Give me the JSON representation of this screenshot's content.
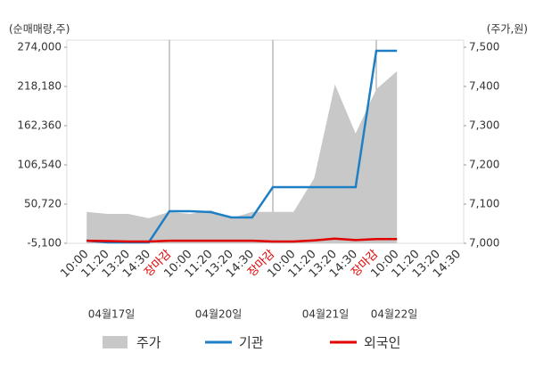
{
  "chart_data": {
    "type": "line",
    "y_label": "(순매매량,주)",
    "y2_label": "(주가,원)",
    "categories": [
      "10:00",
      "11:20",
      "13:20",
      "14:30",
      "장마감",
      "10:00",
      "11:20",
      "13:20",
      "14:30",
      "장마감",
      "10:00",
      "11:20",
      "13:20",
      "14:30",
      "장마감",
      "10:00",
      "11:20",
      "13:20",
      "14:30"
    ],
    "category_colors": [
      "#333",
      "#333",
      "#333",
      "#333",
      "#e00000",
      "#333",
      "#333",
      "#333",
      "#333",
      "#e00000",
      "#333",
      "#333",
      "#333",
      "#333",
      "#e00000",
      "#333",
      "#333",
      "#333",
      "#333"
    ],
    "dates": [
      "04월17일",
      "04월20일",
      "04월21일",
      "04월22일"
    ],
    "series": [
      {
        "name": "주가",
        "type": "area",
        "color": "#c8c8c8",
        "axis": "y2",
        "values": [
          7080,
          7075,
          7075,
          7064,
          7080,
          7075,
          7084,
          7064,
          7080,
          7080,
          7080,
          7166,
          7405,
          7280,
          7393,
          7439,
          null,
          null,
          null
        ]
      },
      {
        "name": "기관",
        "type": "line",
        "color": "#1f7fc4",
        "values": [
          -1300,
          -3800,
          -3800,
          -3800,
          40600,
          40600,
          39300,
          31700,
          31700,
          74800,
          74800,
          74800,
          74800,
          74800,
          269000,
          269000,
          null,
          null,
          null
        ]
      },
      {
        "name": "외국인",
        "type": "line",
        "color": "#e00000",
        "values": [
          -1500,
          -2000,
          -2500,
          -2500,
          -1500,
          -1500,
          -1500,
          -1500,
          -1500,
          -2500,
          -2500,
          -1000,
          1500,
          -500,
          1000,
          1000,
          null,
          null,
          null
        ]
      }
    ],
    "ylim": [
      -5100,
      274000
    ],
    "yticks": [
      {
        "value": -5100,
        "label": "-5,100"
      },
      {
        "value": 50720,
        "label": "50,720"
      },
      {
        "value": 106540,
        "label": "106,540"
      },
      {
        "value": 162360,
        "label": "162,360"
      },
      {
        "value": 218180,
        "label": "218,180"
      },
      {
        "value": 274000,
        "label": "274,000"
      }
    ],
    "y2lim": [
      7000,
      7500
    ],
    "y2ticks": [
      {
        "value": 7000,
        "label": "7,000"
      },
      {
        "value": 7100,
        "label": "7,100"
      },
      {
        "value": 7200,
        "label": "7,200"
      },
      {
        "value": 7300,
        "label": "7,300"
      },
      {
        "value": 7400,
        "label": "7,400"
      },
      {
        "value": 7500,
        "label": "7,500"
      }
    ]
  }
}
